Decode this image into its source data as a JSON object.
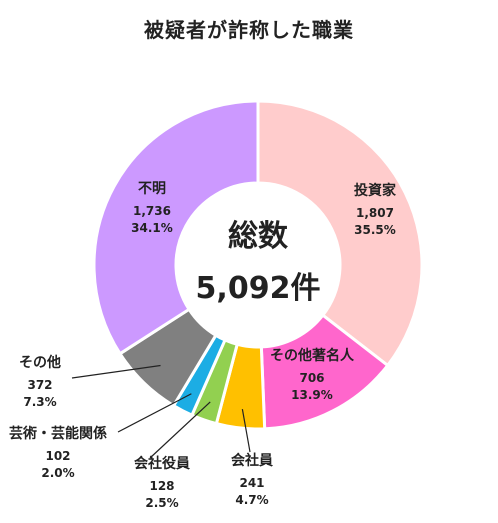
{
  "chart_data": {
    "type": "pie",
    "title": "被疑者が詐称した職業",
    "center_label": "総数",
    "center_total": "5,092件",
    "slices": [
      {
        "name": "投資家",
        "count": "1,807",
        "pct": "35.5%",
        "value": 1807,
        "color": "#FFCCCC"
      },
      {
        "name": "その他著名人",
        "count": "706",
        "pct": "13.9%",
        "value": 706,
        "color": "#FF66CC"
      },
      {
        "name": "会社員",
        "count": "241",
        "pct": "4.7%",
        "value": 241,
        "color": "#FFC000"
      },
      {
        "name": "会社役員",
        "count": "128",
        "pct": "2.5%",
        "value": 128,
        "color": "#92D050"
      },
      {
        "name": "芸術・芸能関係",
        "count": "102",
        "pct": "2.0%",
        "value": 102,
        "color": "#1CADE4"
      },
      {
        "name": "その他",
        "count": "372",
        "pct": "7.3%",
        "value": 372,
        "color": "#808080"
      },
      {
        "name": "不明",
        "count": "1,736",
        "pct": "34.1%",
        "value": 1736,
        "color": "#CC99FF"
      }
    ]
  }
}
